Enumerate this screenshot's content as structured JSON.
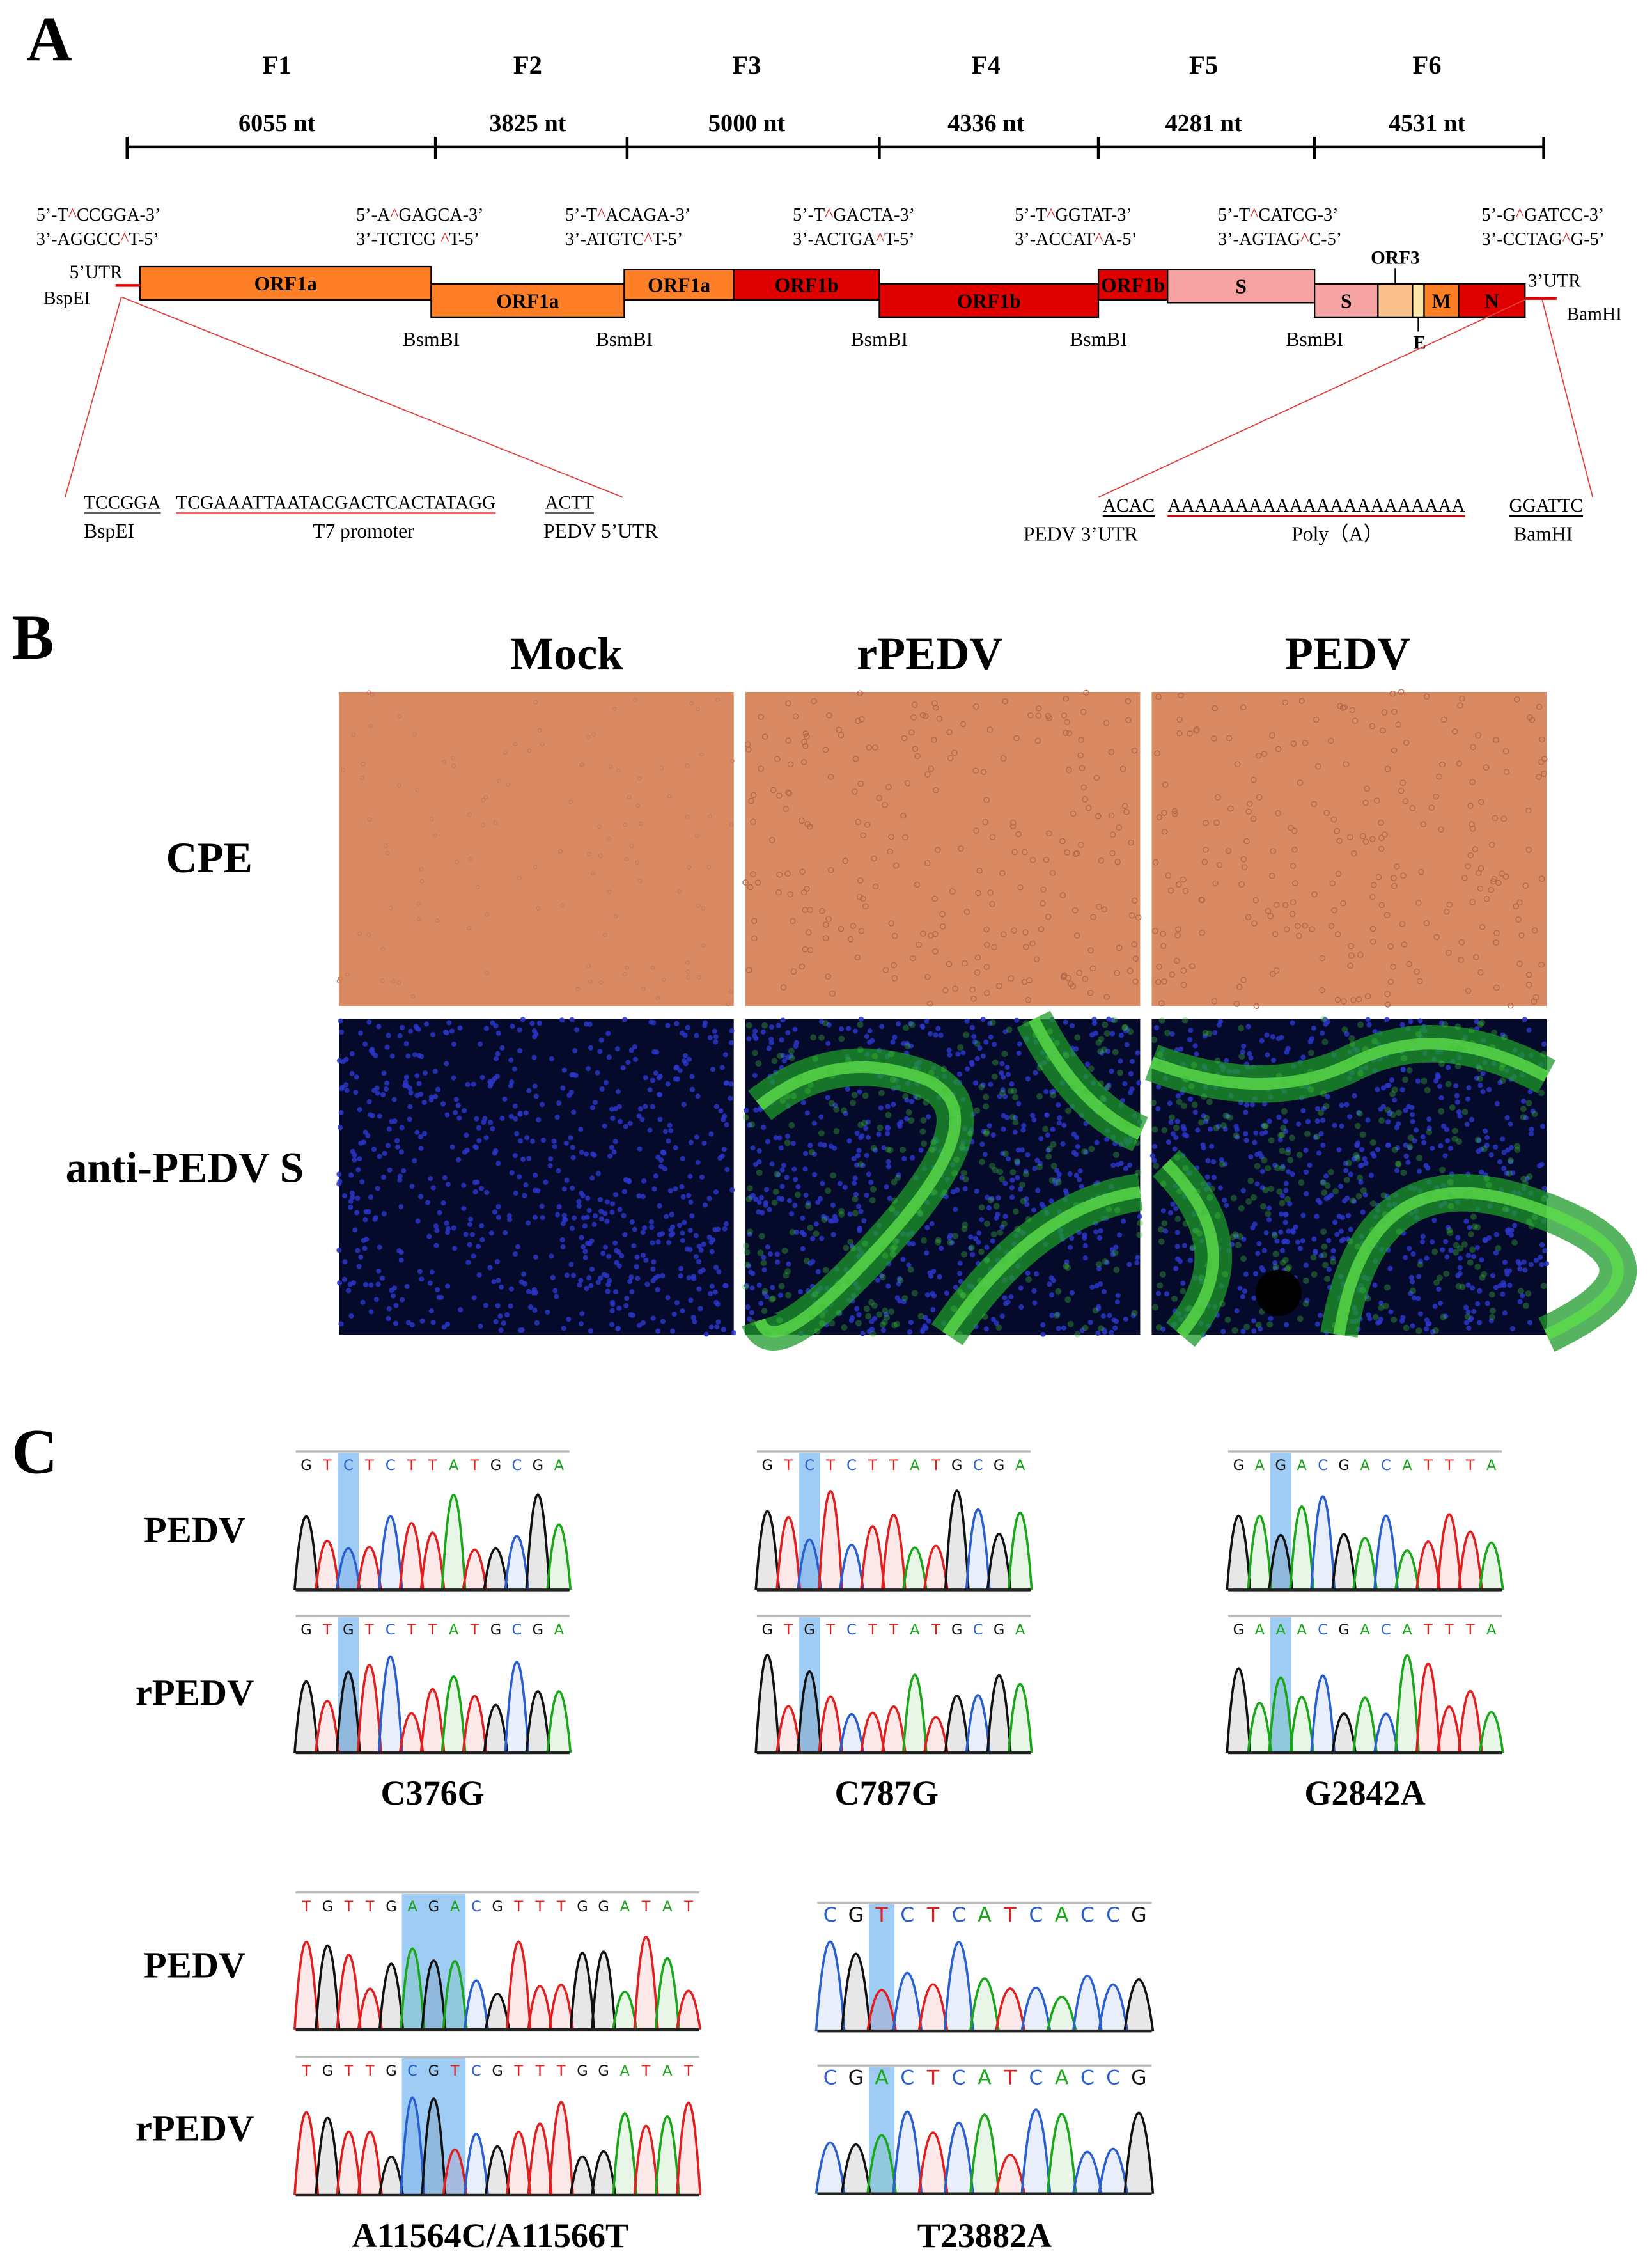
{
  "panel_a": {
    "label": "A",
    "fragments": [
      {
        "name": "F1",
        "length": "6055 nt"
      },
      {
        "name": "F2",
        "length": "3825 nt"
      },
      {
        "name": "F3",
        "length": "5000 nt"
      },
      {
        "name": "F4",
        "length": "4336 nt"
      },
      {
        "name": "F5",
        "length": "4281 nt"
      },
      {
        "name": "F6",
        "length": "4531 nt"
      }
    ],
    "sites": [
      {
        "top": "5’-T^CCGGA-3’",
        "bottom": "3’-AGGCC^T-5’"
      },
      {
        "top": "5’-A^GAGCA-3’",
        "bottom": "3’-TCTCG ^T-5’"
      },
      {
        "top": "5’-T^ACAGA-3’",
        "bottom": "3’-ATGTC^T-5’"
      },
      {
        "top": "5’-T^GACTA-3’",
        "bottom": "3’-ACTGA^T-5’"
      },
      {
        "top": "5’-T^GGTAT-3’",
        "bottom": "3’-ACCAT^A-5’"
      },
      {
        "top": "5’-T^CATCG-3’",
        "bottom": "3’-AGTAG^C-5’"
      },
      {
        "top": "5’-G^GATCC-3’",
        "bottom": "3’-CCTAG^G-5’"
      }
    ],
    "genes": [
      "ORF1a",
      "ORF1a",
      "ORF1a",
      "ORF1b",
      "ORF1b",
      "ORF1b",
      "S",
      "S",
      "ORF3",
      "E",
      "M",
      "N"
    ],
    "utr5": "5’UTR",
    "utr3": "3’UTR",
    "start_enzyme": "BspEI",
    "end_enzyme": "BamHI",
    "cut_enzymes": [
      "BsmBI",
      "BsmBI",
      "BsmBI",
      "BsmBI",
      "BsmBI"
    ],
    "promoter_detail": {
      "site": "TCCGGA",
      "promoter": "TCGAAATTAATACGACTCACTATAGG",
      "utr": "ACTT",
      "site_label": "BspEI",
      "promoter_label": "T7 promoter",
      "utr_label": "PEDV 5’UTR"
    },
    "polya_detail": {
      "utr": "ACAC",
      "polya": "AAAAAAAAAAAAAAAAAAAAAA",
      "site": "GGATTC",
      "utr_label": "PEDV 3’UTR",
      "polya_label": "Poly（A）",
      "site_label": "BamHI"
    }
  },
  "panel_b": {
    "label": "B",
    "columns": [
      "Mock",
      "rPEDV",
      "PEDV"
    ],
    "rows": [
      "CPE",
      "anti-PEDV S"
    ]
  },
  "panel_c": {
    "label": "C",
    "rows": [
      {
        "labels": [
          "PEDV",
          "rPEDV"
        ],
        "groups": [
          {
            "mutation": "C376G",
            "sequences": [
              "GTCTCTTATGCGA",
              "GTGTCTTATGCGA"
            ]
          },
          {
            "mutation": "C787G",
            "sequences": [
              "GTCTCTTATGCGA",
              "GTGTCTTATGCGA"
            ]
          },
          {
            "mutation": "G2842A",
            "sequences": [
              "GAGACGACATTTA",
              "GAAACGACATTTA"
            ]
          }
        ]
      },
      {
        "labels": [
          "PEDV",
          "rPEDV"
        ],
        "groups": [
          {
            "mutation": "A11564C/A11566T",
            "sequences": [
              "TGTTGAGACGTTTGGATAT",
              "TGTTGCGTCGTTTGGATAT"
            ]
          },
          {
            "mutation": "T23882A",
            "sequences": [
              "CGTCTCATCACCG",
              "CGACTCATCACCG"
            ]
          }
        ]
      }
    ]
  }
}
